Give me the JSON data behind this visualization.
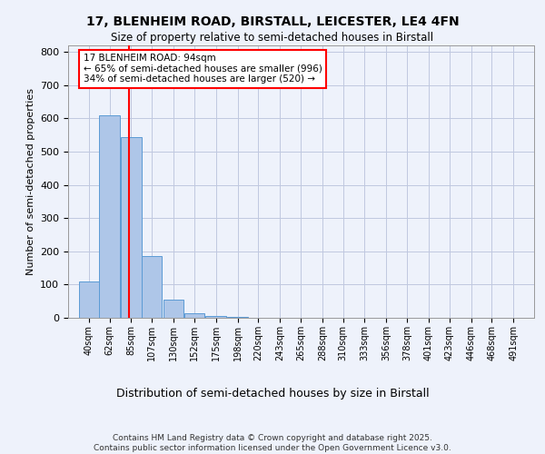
{
  "title_line1": "17, BLENHEIM ROAD, BIRSTALL, LEICESTER, LE4 4FN",
  "title_line2": "Size of property relative to semi-detached houses in Birstall",
  "xlabel": "Distribution of semi-detached houses by size in Birstall",
  "ylabel": "Number of semi-detached properties",
  "bin_labels": [
    "40sqm",
    "62sqm",
    "85sqm",
    "107sqm",
    "130sqm",
    "152sqm",
    "175sqm",
    "198sqm",
    "220sqm",
    "243sqm",
    "265sqm",
    "288sqm",
    "310sqm",
    "333sqm",
    "356sqm",
    "378sqm",
    "401sqm",
    "423sqm",
    "446sqm",
    "468sqm",
    "491sqm"
  ],
  "bar_heights": [
    110,
    610,
    545,
    185,
    55,
    15,
    5,
    2,
    1,
    0,
    0,
    0,
    0,
    0,
    0,
    0,
    0,
    0,
    0,
    0,
    0
  ],
  "bar_color": "#aec6e8",
  "bar_edge_color": "#5b9bd5",
  "ylim": [
    0,
    820
  ],
  "yticks": [
    0,
    100,
    200,
    300,
    400,
    500,
    600,
    700,
    800
  ],
  "property_size": 94,
  "vline_color": "red",
  "annotation_text": "17 BLENHEIM ROAD: 94sqm\n← 65% of semi-detached houses are smaller (996)\n34% of semi-detached houses are larger (520) →",
  "footer_text": "Contains HM Land Registry data © Crown copyright and database right 2025.\nContains public sector information licensed under the Open Government Licence v3.0.",
  "background_color": "#eef2fb",
  "plot_bg_color": "#eef2fb",
  "grid_color": "#c0c8e0",
  "bin_edges": [
    40,
    62,
    85,
    107,
    130,
    152,
    175,
    198,
    220,
    243,
    265,
    288,
    310,
    333,
    356,
    378,
    401,
    423,
    446,
    468,
    491
  ]
}
